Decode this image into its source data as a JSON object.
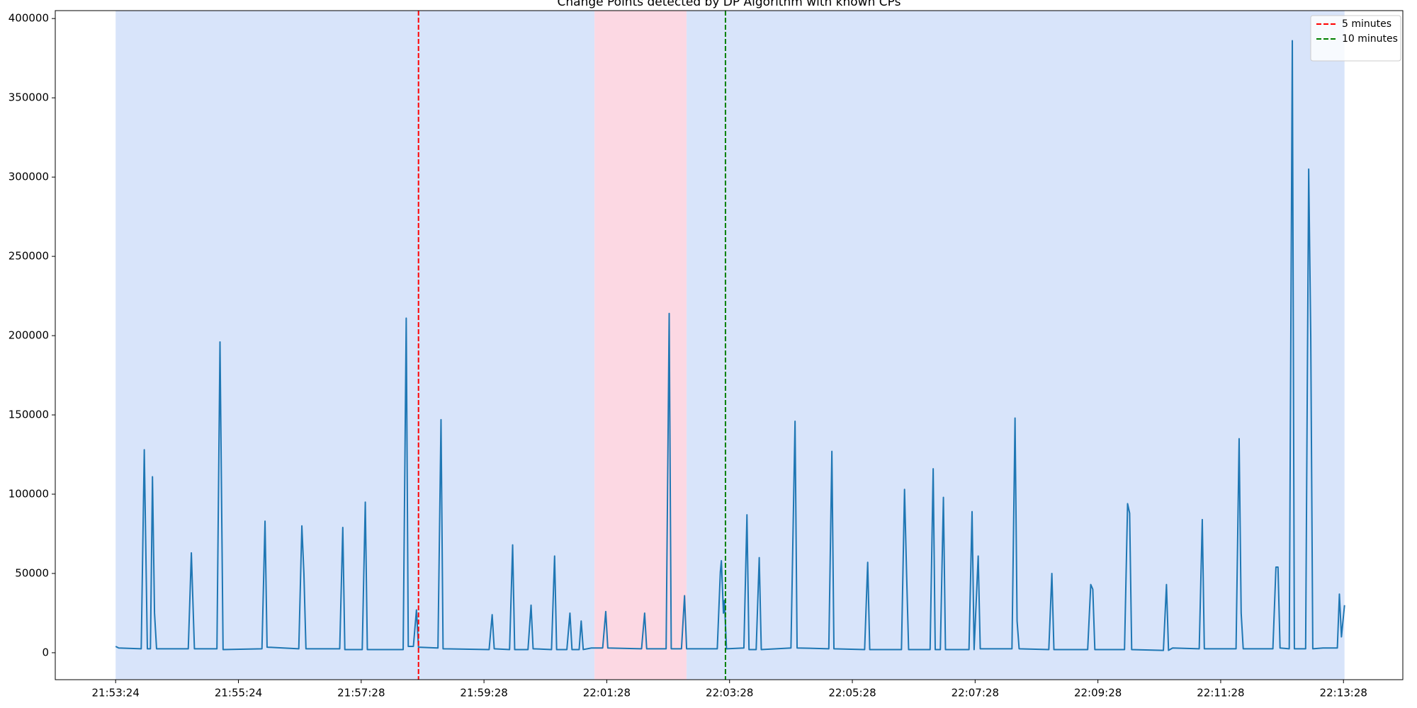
{
  "chart_data": {
    "type": "line",
    "title": "Change Points detected by DP Algorithm with known CPs",
    "x": [
      0,
      3,
      25,
      28,
      31,
      34,
      36,
      38,
      40,
      71,
      74,
      77,
      99,
      102,
      105,
      143,
      146,
      148,
      179,
      182,
      184,
      186,
      219,
      222,
      224,
      241,
      244,
      246,
      281,
      284,
      286,
      291,
      294,
      296,
      315,
      318,
      320,
      365,
      368,
      370,
      385,
      388,
      390,
      403,
      406,
      408,
      426,
      429,
      431,
      441,
      444,
      446,
      453,
      455,
      457,
      465,
      476,
      479,
      481,
      514,
      517,
      519,
      538,
      541,
      543,
      553,
      556,
      558,
      588,
      591,
      592,
      594,
      595,
      597,
      614,
      617,
      619,
      626,
      629,
      631,
      660,
      664,
      666,
      697,
      700,
      702,
      732,
      735,
      737,
      768,
      771,
      773,
      775,
      796,
      799,
      801,
      806,
      809,
      811,
      834,
      837,
      839,
      843,
      845,
      876,
      879,
      881,
      883,
      912,
      915,
      917,
      950,
      953,
      955,
      957,
      986,
      989,
      991,
      993,
      1024,
      1027,
      1029,
      1033,
      1059,
      1062,
      1064,
      1095,
      1098,
      1100,
      1102,
      1131,
      1134,
      1136,
      1138,
      1147,
      1150,
      1152,
      1163,
      1166,
      1168,
      1170,
      1180,
      1194,
      1196,
      1198,
      1201
    ],
    "series": [
      {
        "color": "#1f77b4",
        "values": [
          4000,
          3000,
          2500,
          128000,
          2500,
          2500,
          111000,
          25000,
          2500,
          2500,
          63000,
          2500,
          2500,
          196000,
          2000,
          2500,
          83000,
          3500,
          2500,
          80000,
          50000,
          2500,
          2500,
          79000,
          2000,
          2000,
          95000,
          2000,
          2000,
          211000,
          4000,
          4000,
          27000,
          3500,
          3000,
          147000,
          2500,
          2000,
          24000,
          2500,
          2000,
          68000,
          2000,
          2000,
          30000,
          2500,
          2000,
          61000,
          2000,
          2000,
          25000,
          2000,
          2000,
          20000,
          2000,
          3000,
          3000,
          26000,
          3000,
          2500,
          25000,
          2500,
          2500,
          214000,
          2500,
          2500,
          36000,
          2500,
          2500,
          51000,
          58000,
          25000,
          33000,
          2500,
          3000,
          87000,
          2000,
          2000,
          60000,
          2000,
          3000,
          146000,
          3000,
          2500,
          127000,
          2500,
          2000,
          57000,
          2000,
          2000,
          103000,
          50000,
          2000,
          2000,
          116000,
          2000,
          2000,
          98000,
          2000,
          2000,
          89000,
          2000,
          61000,
          2500,
          2500,
          148000,
          20000,
          2500,
          2000,
          50000,
          2000,
          2000,
          43000,
          40000,
          2000,
          2000,
          94000,
          88000,
          2000,
          1500,
          43000,
          1500,
          3000,
          2500,
          84000,
          2500,
          2500,
          135000,
          25000,
          2500,
          2500,
          54000,
          54000,
          3000,
          2500,
          386000,
          2500,
          2500,
          305000,
          200000,
          2500,
          3000,
          3000,
          37000,
          10000,
          30000
        ]
      }
    ],
    "regions": [
      {
        "x0": 0,
        "x1": 468,
        "color": "#d8e4fa"
      },
      {
        "x0": 468,
        "x1": 558,
        "color": "#fcd8e3"
      },
      {
        "x0": 558,
        "x1": 1201,
        "color": "#d8e4fa"
      }
    ],
    "vlines": [
      {
        "name": "5 minutes",
        "x": 296,
        "color": "#ff0000"
      },
      {
        "name": "10 minutes",
        "x": 596,
        "color": "#008000"
      }
    ],
    "xlim": [
      -59,
      1258
    ],
    "xticks": [
      {
        "value": 0,
        "label": "21:53:24"
      },
      {
        "value": 120,
        "label": "21:55:24"
      },
      {
        "value": 240,
        "label": "21:57:28"
      },
      {
        "value": 360,
        "label": "21:59:28"
      },
      {
        "value": 480,
        "label": "22:01:28"
      },
      {
        "value": 600,
        "label": "22:03:28"
      },
      {
        "value": 720,
        "label": "22:05:28"
      },
      {
        "value": 840,
        "label": "22:07:28"
      },
      {
        "value": 960,
        "label": "22:09:28"
      },
      {
        "value": 1080,
        "label": "22:11:28"
      },
      {
        "value": 1200,
        "label": "22:13:28"
      }
    ],
    "ylim": [
      -17000,
      405000
    ],
    "yticks": [
      0,
      50000,
      100000,
      150000,
      200000,
      250000,
      300000,
      350000,
      400000
    ],
    "legend": "upper right"
  }
}
